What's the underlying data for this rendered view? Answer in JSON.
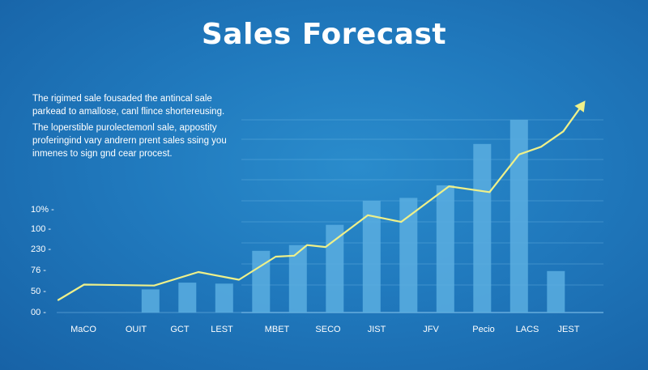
{
  "header": {
    "title": "Sales Forecast"
  },
  "description": {
    "paragraph_1": "The rigimed sale fousaded the antincal sale parkead to amallose, canl flince shortereusing.",
    "paragraph_2": "The loperstible purolectemonl sale, appostity proferingind vary andrern prent sales ssing you inmenes to sign gnd cear procest."
  },
  "colors": {
    "background": "#2079bd",
    "bar": "#5aaee0",
    "line": "#eef08a",
    "grid": "#7fc0ea",
    "text": "#ffffff"
  },
  "chart_data": {
    "type": "bar",
    "title": "Sales Forecast",
    "xlabel": "",
    "ylabel": "",
    "categories": [
      "MaCO",
      "OUIT",
      "GCT",
      "LEST",
      "MBET",
      "SECO",
      "JIST",
      "JFV",
      "Pecio",
      "LACS",
      "JEST"
    ],
    "y_tick_labels": [
      "00",
      "50",
      "76",
      "230",
      "100",
      "10%"
    ],
    "grid": true,
    "ylim": [
      0,
      100
    ],
    "series": [
      {
        "type": "bar",
        "values": [
          [
            2.5,
            12
          ],
          [
            3.5,
            15.5
          ],
          [
            4.5,
            15
          ],
          [
            5.5,
            32
          ],
          [
            6.5,
            35
          ],
          [
            7.5,
            45.5
          ],
          [
            8.5,
            58
          ],
          [
            9.5,
            59.5
          ],
          [
            10.5,
            66
          ],
          [
            11.5,
            87.5
          ],
          [
            12.5,
            100
          ],
          [
            13.5,
            21.5
          ]
        ]
      },
      {
        "type": "line",
        "values": [
          [
            0,
            6.5
          ],
          [
            0.7,
            14.5
          ],
          [
            2.6,
            14
          ],
          [
            3.8,
            21
          ],
          [
            4.9,
            17
          ],
          [
            5.9,
            29
          ],
          [
            6.4,
            29.5
          ],
          [
            6.75,
            35
          ],
          [
            7.25,
            34
          ],
          [
            8.4,
            50.5
          ],
          [
            9.3,
            47
          ],
          [
            10.6,
            65.5
          ],
          [
            11.7,
            62.5
          ],
          [
            12.5,
            82
          ],
          [
            13.1,
            86
          ],
          [
            13.7,
            94
          ],
          [
            14.3,
            110
          ]
        ]
      }
    ]
  }
}
